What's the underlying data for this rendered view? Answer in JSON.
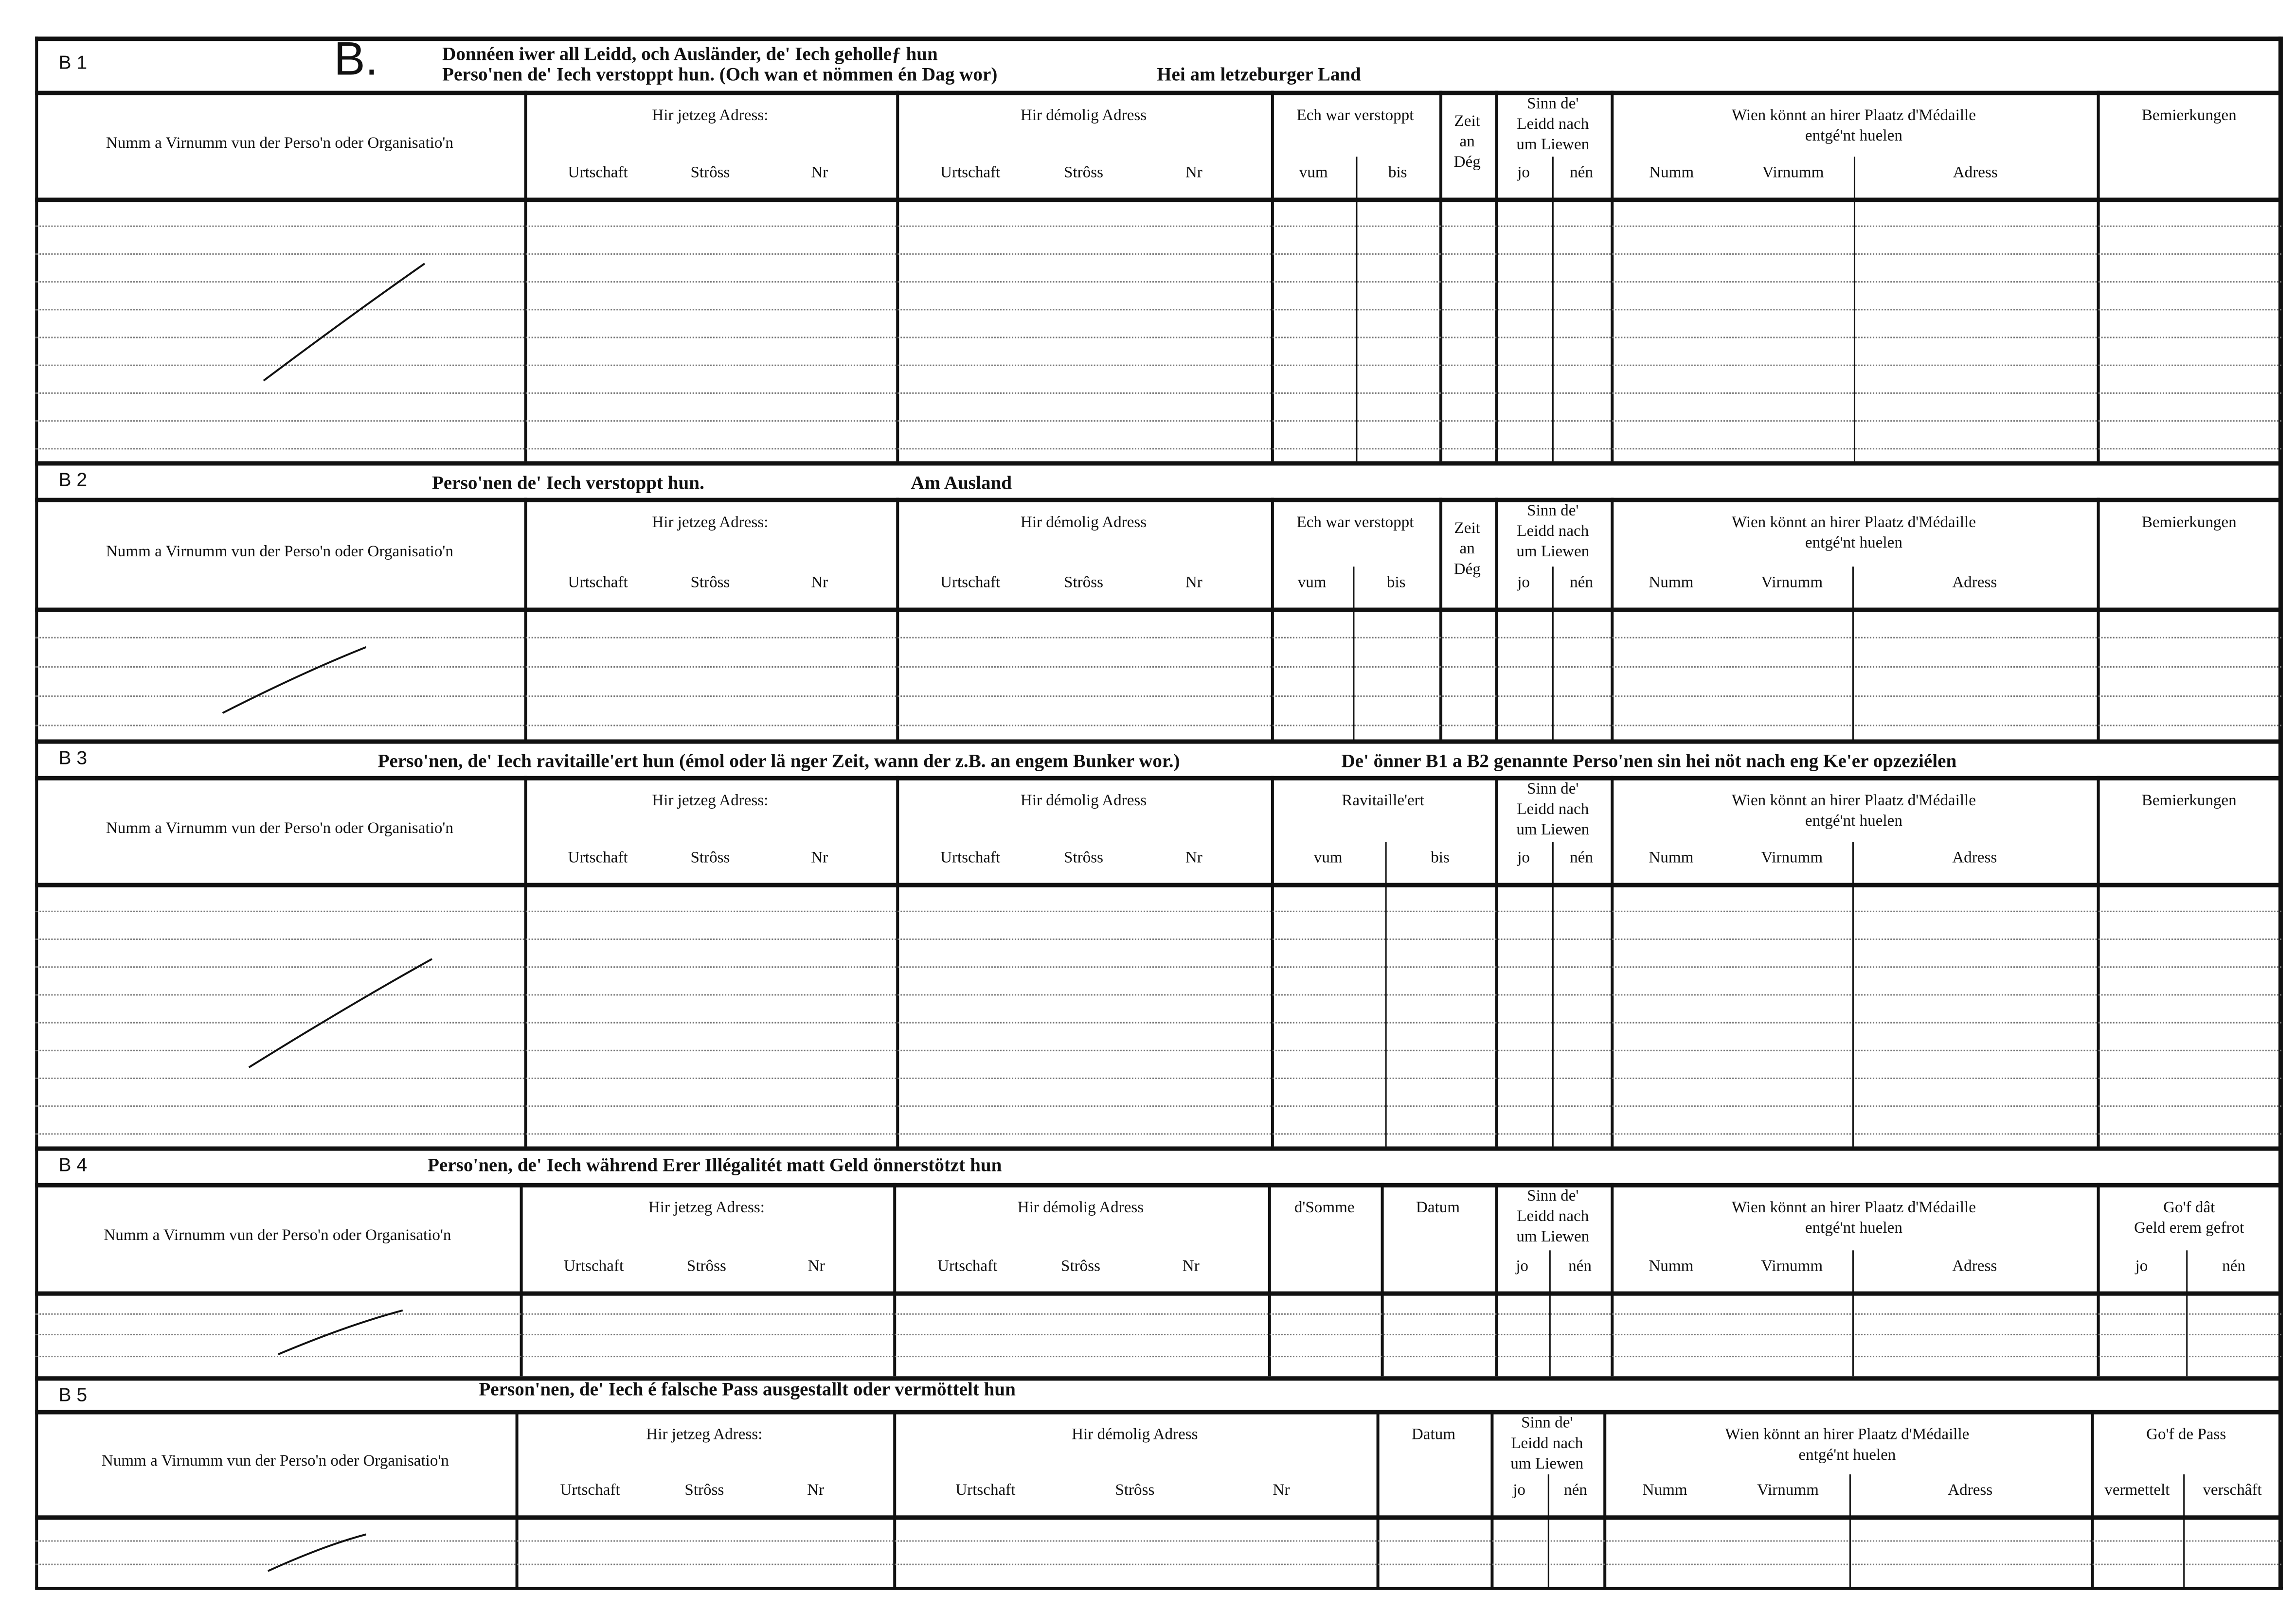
{
  "document": {
    "big_letter": "B.",
    "sections": [
      {
        "id": "B 1",
        "title": [
          "Donnéen iwer all Leidd, och Ausländer, de' Iech geholleƒ hun",
          "Perso'nen de' Iech verstoppt hun. (Och wan et nömmen én Dag wor)",
          "Hei am letzeburger Land"
        ],
        "columns": [
          {
            "key": "name",
            "label": "Numm a Virnumm vun der Perso'n oder Organisatio'n",
            "sub": []
          },
          {
            "key": "current-address",
            "label": "Hir jetzeg Adress:",
            "sub": [
              "Urtschaft",
              "Strôss",
              "Nr"
            ]
          },
          {
            "key": "former-address",
            "label": "Hir démolig Adress",
            "sub": [
              "Urtschaft",
              "Strôss",
              "Nr"
            ]
          },
          {
            "key": "hidden",
            "label": "Ech war verstoppt",
            "sub": [
              "vum",
              "bis"
            ]
          },
          {
            "key": "days",
            "label": "Zeit\nan\nDég",
            "sub": []
          },
          {
            "key": "survived",
            "label": "Sinn de'\nLeidd nach\num Liewen",
            "sub": [
              "jo",
              "nén"
            ]
          },
          {
            "key": "medal",
            "label": "Wien könnt an hirer Plaatz d'Médaille\nentgé'nt huelen",
            "sub": [
              "Numm",
              "Virnumm",
              "Adress"
            ]
          },
          {
            "key": "remarks",
            "label": "Bemierkungen",
            "sub": []
          }
        ]
      },
      {
        "id": "B 2",
        "title": [
          "Perso'nen de' Iech verstoppt hun.",
          "Am Ausland"
        ],
        "columns": [
          {
            "key": "name",
            "label": "Numm a Virnumm vun der Perso'n oder Organisatio'n",
            "sub": []
          },
          {
            "key": "current-address",
            "label": "Hir jetzeg Adress:",
            "sub": [
              "Urtschaft",
              "Strôss",
              "Nr"
            ]
          },
          {
            "key": "former-address",
            "label": "Hir démolig Adress",
            "sub": [
              "Urtschaft",
              "Strôss",
              "Nr"
            ]
          },
          {
            "key": "hidden",
            "label": "Ech war verstoppt",
            "sub": [
              "vum",
              "bis"
            ]
          },
          {
            "key": "days",
            "label": "Zeit\nan\nDég",
            "sub": []
          },
          {
            "key": "survived",
            "label": "Sinn de'\nLeidd nach\num Liewen",
            "sub": [
              "jo",
              "nén"
            ]
          },
          {
            "key": "medal",
            "label": "Wien könnt an hirer Plaatz d'Médaille\nentgé'nt huelen",
            "sub": [
              "Numm",
              "Virnumm",
              "Adress"
            ]
          },
          {
            "key": "remarks",
            "label": "Bemierkungen",
            "sub": []
          }
        ]
      },
      {
        "id": "B 3",
        "title": [
          "Perso'nen, de' Iech ravitaille'ert hun (émol oder lä nger Zeit, wann der z.B. an engem Bunker wor.)",
          "De' önner B1 a B2 genannte Perso'nen sin hei nöt nach eng Ke'er opzeziélen"
        ],
        "columns": [
          {
            "key": "name",
            "label": "Numm a Virnumm vun der Perso'n oder Organisatio'n",
            "sub": []
          },
          {
            "key": "current-address",
            "label": "Hir jetzeg Adress:",
            "sub": [
              "Urtschaft",
              "Strôss",
              "Nr"
            ]
          },
          {
            "key": "former-address",
            "label": "Hir démolig Adress",
            "sub": [
              "Urtschaft",
              "Strôss",
              "Nr"
            ]
          },
          {
            "key": "supplied",
            "label": "Ravitaille'ert",
            "sub": [
              "vum",
              "bis"
            ]
          },
          {
            "key": "survived",
            "label": "Sinn de'\nLeidd nach\num Liewen",
            "sub": [
              "jo",
              "nén"
            ]
          },
          {
            "key": "medal",
            "label": "Wien könnt an hirer Plaatz d'Médaille\nentgé'nt huelen",
            "sub": [
              "Numm",
              "Virnumm",
              "Adress"
            ]
          },
          {
            "key": "remarks",
            "label": "Bemierkungen",
            "sub": []
          }
        ]
      },
      {
        "id": "B 4",
        "title": [
          "Perso'nen, de' Iech während Erer Illégalitét matt Geld önnerstötzt hun"
        ],
        "columns": [
          {
            "key": "name",
            "label": "Numm a Virnumm vun der Perso'n oder Organisatio'n",
            "sub": []
          },
          {
            "key": "current-address",
            "label": "Hir jetzeg Adress:",
            "sub": [
              "Urtschaft",
              "Strôss",
              "Nr"
            ]
          },
          {
            "key": "former-address",
            "label": "Hir démolig Adress",
            "sub": [
              "Urtschaft",
              "Strôss",
              "Nr"
            ]
          },
          {
            "key": "amount",
            "label": "d'Somme",
            "sub": []
          },
          {
            "key": "date",
            "label": "Datum",
            "sub": []
          },
          {
            "key": "survived",
            "label": "Sinn de'\nLeidd nach\num Liewen",
            "sub": [
              "jo",
              "nén"
            ]
          },
          {
            "key": "medal",
            "label": "Wien könnt an hirer Plaatz d'Médaille\nentgé'nt huelen",
            "sub": [
              "Numm",
              "Virnumm",
              "Adress"
            ]
          },
          {
            "key": "money-returned",
            "label": "Go'f dât\nGeld erem gefrot",
            "sub": [
              "jo",
              "nén"
            ]
          }
        ]
      },
      {
        "id": "B 5",
        "title": [
          "Person'nen, de' Iech é falsche Pass ausgestallt oder vermöttelt hun"
        ],
        "columns": [
          {
            "key": "name",
            "label": "Numm a Virnumm vun der Perso'n oder Organisatio'n",
            "sub": []
          },
          {
            "key": "current-address",
            "label": "Hir jetzeg Adress:",
            "sub": [
              "Urtschaft",
              "Strôss",
              "Nr"
            ]
          },
          {
            "key": "former-address",
            "label": "Hir démolig Adress",
            "sub": [
              "Urtschaft",
              "Strôss",
              "Nr"
            ]
          },
          {
            "key": "date",
            "label": "Datum",
            "sub": []
          },
          {
            "key": "survived",
            "label": "Sinn de'\nLeidd nach\num Liewen",
            "sub": [
              "jo",
              "nén"
            ]
          },
          {
            "key": "medal",
            "label": "Wien könnt an hirer Plaatz d'Médaille\nentgé'nt huelen",
            "sub": [
              "Numm",
              "Virnumm",
              "Adress"
            ]
          },
          {
            "key": "pass",
            "label": "Go'f de Pass",
            "sub": [
              "vermettelt",
              "verschâft"
            ]
          }
        ]
      }
    ]
  }
}
